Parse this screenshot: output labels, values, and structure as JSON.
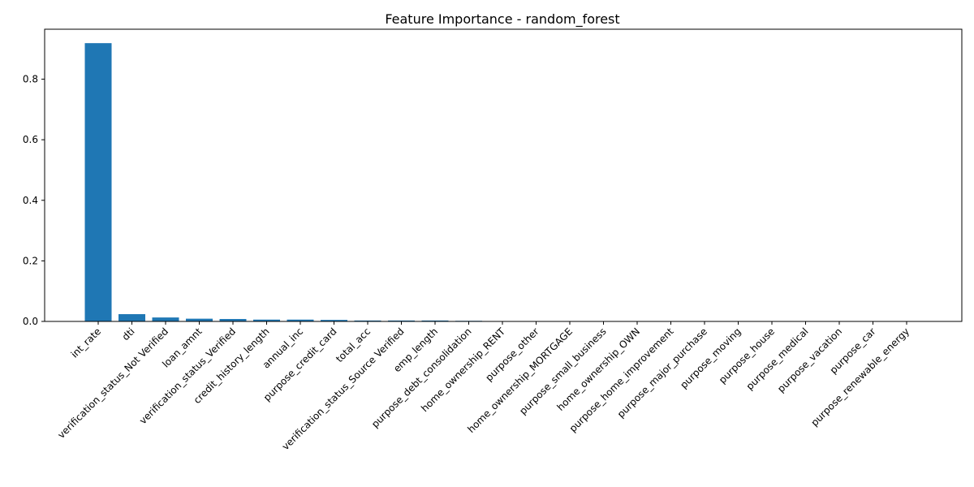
{
  "chart_data": {
    "type": "bar",
    "title": "Feature Importance - random_forest",
    "xlabel": "",
    "ylabel": "",
    "ylim": [
      0,
      0.965
    ],
    "yticks": [
      0.0,
      0.2,
      0.4,
      0.6,
      0.8
    ],
    "ytick_labels": [
      "0.0",
      "0.2",
      "0.4",
      "0.6",
      "0.8"
    ],
    "grid": false,
    "bar_color": "#1f77b4",
    "categories": [
      "int_rate",
      "dti",
      "verification_status_Not Verified",
      "loan_amnt",
      "verification_status_Verified",
      "credit_history_length",
      "annual_inc",
      "purpose_credit_card",
      "total_acc",
      "verification_status_Source Verified",
      "emp_length",
      "purpose_debt_consolidation",
      "home_ownership_RENT",
      "purpose_other",
      "home_ownership_MORTGAGE",
      "purpose_small_business",
      "home_ownership_OWN",
      "purpose_home_improvement",
      "purpose_major_purchase",
      "purpose_moving",
      "purpose_house",
      "purpose_medical",
      "purpose_vacation",
      "purpose_car",
      "purpose_renewable_energy"
    ],
    "values": [
      0.919,
      0.024,
      0.013,
      0.009,
      0.008,
      0.006,
      0.006,
      0.005,
      0.003,
      0.003,
      0.003,
      0.002,
      0.0005,
      0.0004,
      0.0003,
      0.0003,
      0.0002,
      0.0002,
      0.0001,
      0.0001,
      0.0001,
      0.0001,
      0.0001,
      0.0,
      0.0
    ]
  }
}
